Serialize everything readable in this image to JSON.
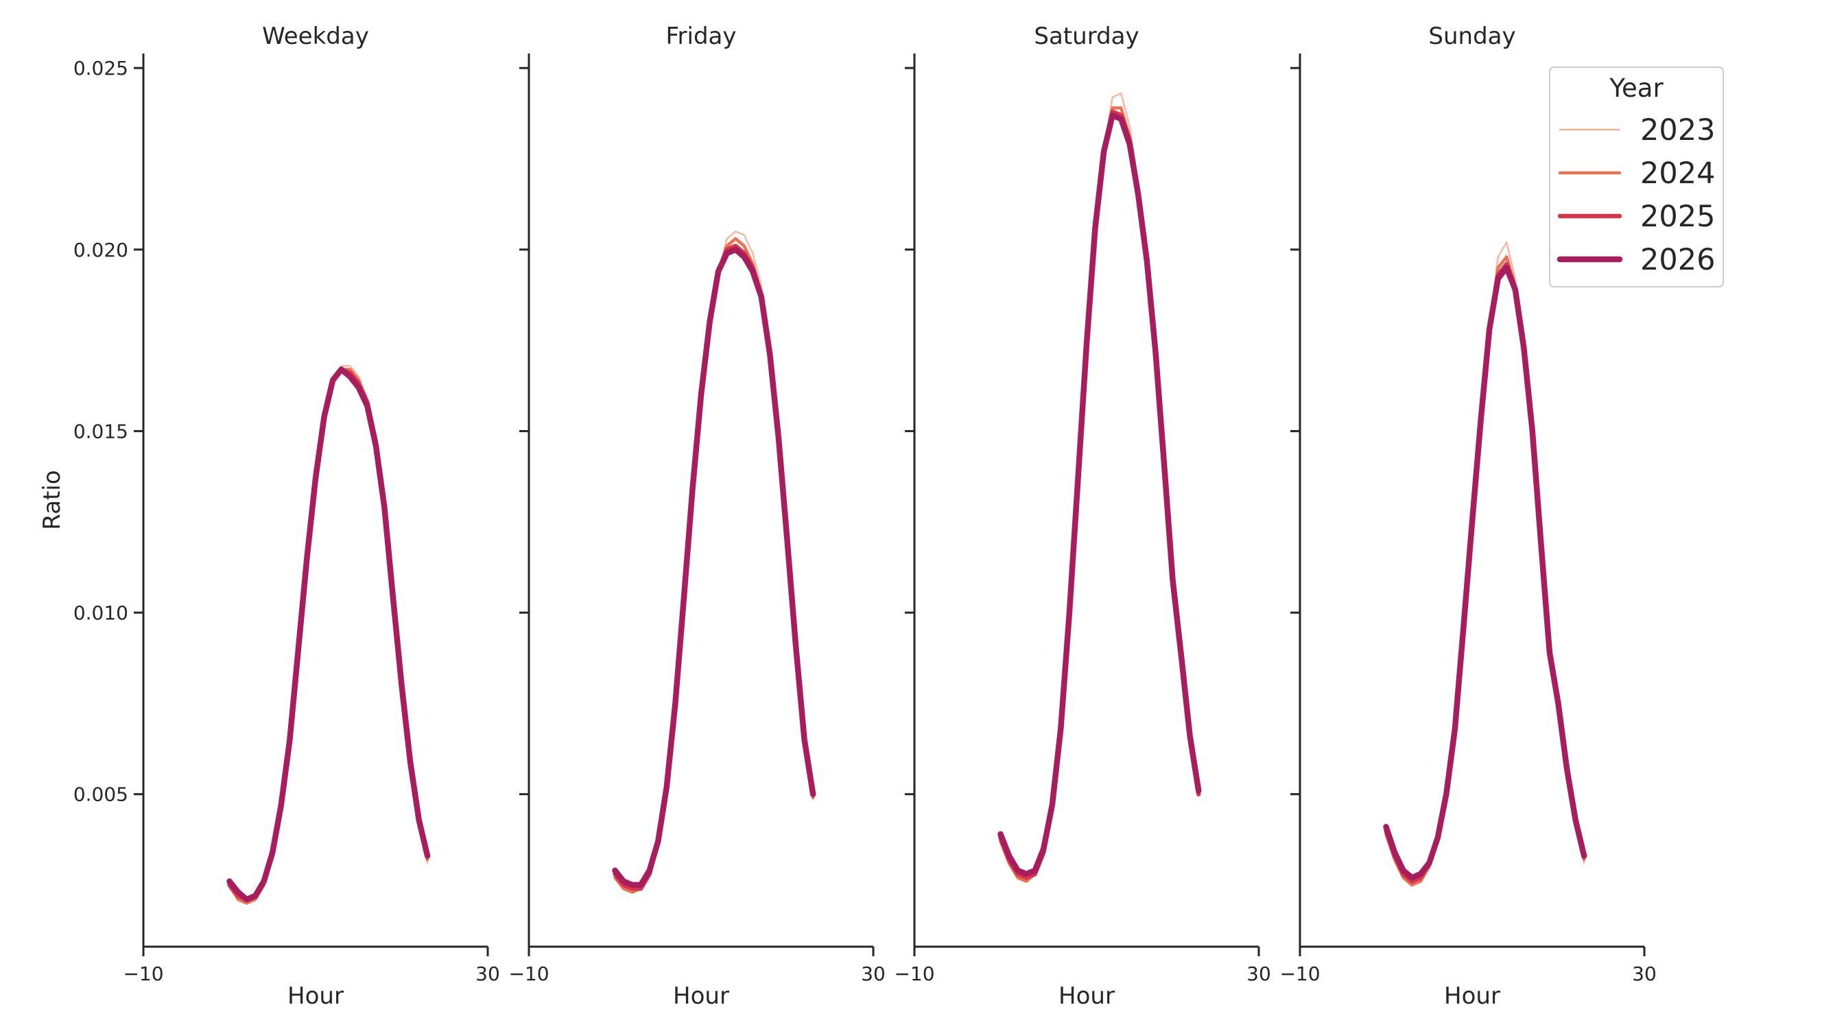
{
  "chart_data": {
    "type": "line",
    "ylabel": "Ratio",
    "legend": {
      "title": "Year",
      "position": "top-right",
      "entries": [
        {
          "name": "2023",
          "color": "#f5b09a"
        },
        {
          "name": "2024",
          "color": "#ec7152"
        },
        {
          "name": "2025",
          "color": "#d6364c"
        },
        {
          "name": "2026",
          "color": "#a71e5e"
        }
      ]
    },
    "y_ticks": [
      "0.005",
      "0.010",
      "0.015",
      "0.020",
      "0.025"
    ],
    "y_tick_values": [
      0.005,
      0.01,
      0.015,
      0.02,
      0.025
    ],
    "ylim": [
      0.0008,
      0.0254
    ],
    "xlim": [
      -10,
      30
    ],
    "x_ticks": [
      "−10",
      "30"
    ],
    "x_tick_values": [
      -10,
      30
    ],
    "grid": false,
    "panels": [
      {
        "title": "Weekday",
        "xlabel": "Hour",
        "x": [
          0,
          1,
          2,
          3,
          4,
          5,
          6,
          7,
          8,
          9,
          10,
          11,
          12,
          13,
          14,
          15,
          16,
          17,
          18,
          19,
          20,
          21,
          22,
          23
        ],
        "series": [
          {
            "name": "2023",
            "values": [
              0.0024,
              0.0021,
              0.002,
              0.0021,
              0.0025,
              0.0034,
              0.0047,
              0.0065,
              0.009,
              0.0115,
              0.0137,
              0.0154,
              0.0164,
              0.0168,
              0.0168,
              0.0165,
              0.0159,
              0.0147,
              0.0129,
              0.0104,
              0.008,
              0.0058,
              0.0042,
              0.0031
            ]
          },
          {
            "name": "2024",
            "values": [
              0.0025,
              0.0021,
              0.002,
              0.0021,
              0.0025,
              0.0034,
              0.0047,
              0.0065,
              0.009,
              0.0115,
              0.0137,
              0.0154,
              0.0164,
              0.0167,
              0.0167,
              0.0164,
              0.0158,
              0.0147,
              0.0129,
              0.0104,
              0.008,
              0.0059,
              0.0043,
              0.0032
            ]
          },
          {
            "name": "2025",
            "values": [
              0.0025,
              0.0022,
              0.0021,
              0.0022,
              0.0026,
              0.0034,
              0.0047,
              0.0065,
              0.009,
              0.0115,
              0.0137,
              0.0154,
              0.0164,
              0.0167,
              0.0166,
              0.0163,
              0.0158,
              0.0147,
              0.0129,
              0.0104,
              0.008,
              0.0059,
              0.0043,
              0.0033
            ]
          },
          {
            "name": "2026",
            "values": [
              0.0026,
              0.0023,
              0.0021,
              0.0022,
              0.0026,
              0.0034,
              0.0047,
              0.0065,
              0.009,
              0.0115,
              0.0137,
              0.0154,
              0.0164,
              0.0167,
              0.0165,
              0.0162,
              0.0157,
              0.0146,
              0.0129,
              0.0104,
              0.008,
              0.0059,
              0.0043,
              0.0033
            ]
          }
        ]
      },
      {
        "title": "Friday",
        "xlabel": "Hour",
        "x": [
          0,
          1,
          2,
          3,
          4,
          5,
          6,
          7,
          8,
          9,
          10,
          11,
          12,
          13,
          14,
          15,
          16,
          17,
          18,
          19,
          20,
          21,
          22,
          23
        ],
        "series": [
          {
            "name": "2023",
            "values": [
              0.0027,
              0.0024,
              0.0023,
              0.0024,
              0.0028,
              0.0037,
              0.0052,
              0.0075,
              0.0104,
              0.0134,
              0.016,
              0.018,
              0.0194,
              0.0203,
              0.0205,
              0.0204,
              0.0199,
              0.019,
              0.0171,
              0.0148,
              0.012,
              0.0091,
              0.0065,
              0.0049
            ]
          },
          {
            "name": "2024",
            "values": [
              0.0027,
              0.0024,
              0.0023,
              0.0024,
              0.0028,
              0.0037,
              0.0052,
              0.0075,
              0.0104,
              0.0134,
              0.016,
              0.018,
              0.0194,
              0.0201,
              0.0203,
              0.0201,
              0.0196,
              0.0188,
              0.0171,
              0.0148,
              0.012,
              0.0091,
              0.0065,
              0.0049
            ]
          },
          {
            "name": "2025",
            "values": [
              0.0028,
              0.0025,
              0.0024,
              0.0024,
              0.0028,
              0.0037,
              0.0052,
              0.0075,
              0.0104,
              0.0134,
              0.016,
              0.018,
              0.0194,
              0.02,
              0.0201,
              0.0199,
              0.0195,
              0.0187,
              0.0171,
              0.0148,
              0.012,
              0.0091,
              0.0065,
              0.005
            ]
          },
          {
            "name": "2026",
            "values": [
              0.0029,
              0.0026,
              0.0025,
              0.0025,
              0.0029,
              0.0037,
              0.0052,
              0.0075,
              0.0104,
              0.0134,
              0.016,
              0.018,
              0.0194,
              0.0199,
              0.02,
              0.0198,
              0.0194,
              0.0187,
              0.0171,
              0.0148,
              0.012,
              0.0091,
              0.0065,
              0.005
            ]
          }
        ]
      },
      {
        "title": "Saturday",
        "xlabel": "Hour",
        "x": [
          0,
          1,
          2,
          3,
          4,
          5,
          6,
          7,
          8,
          9,
          10,
          11,
          12,
          13,
          14,
          15,
          16,
          17,
          18,
          19,
          20,
          21,
          22,
          23
        ],
        "series": [
          {
            "name": "2023",
            "values": [
              0.0037,
              0.0031,
              0.0027,
              0.0026,
              0.0028,
              0.0034,
              0.0047,
              0.0068,
              0.01,
              0.0137,
              0.0174,
              0.0206,
              0.0227,
              0.0242,
              0.0243,
              0.0234,
              0.0218,
              0.0198,
              0.0172,
              0.0141,
              0.0109,
              0.0088,
              0.0066,
              0.005
            ]
          },
          {
            "name": "2024",
            "values": [
              0.0037,
              0.0031,
              0.0027,
              0.0026,
              0.0028,
              0.0034,
              0.0047,
              0.0068,
              0.01,
              0.0137,
              0.0174,
              0.0206,
              0.0227,
              0.0239,
              0.0239,
              0.0231,
              0.0216,
              0.0197,
              0.0172,
              0.0141,
              0.0109,
              0.0088,
              0.0066,
              0.005
            ]
          },
          {
            "name": "2025",
            "values": [
              0.0038,
              0.0032,
              0.0028,
              0.0027,
              0.0028,
              0.0034,
              0.0047,
              0.0068,
              0.01,
              0.0137,
              0.0174,
              0.0206,
              0.0227,
              0.0238,
              0.0237,
              0.023,
              0.0216,
              0.0197,
              0.0172,
              0.0141,
              0.0109,
              0.0088,
              0.0066,
              0.005
            ]
          },
          {
            "name": "2026",
            "values": [
              0.0039,
              0.0033,
              0.0029,
              0.0028,
              0.0029,
              0.0035,
              0.0047,
              0.0068,
              0.01,
              0.0137,
              0.0174,
              0.0206,
              0.0227,
              0.0237,
              0.0236,
              0.0229,
              0.0215,
              0.0197,
              0.0172,
              0.0141,
              0.0109,
              0.0088,
              0.0066,
              0.0051
            ]
          }
        ]
      },
      {
        "title": "Sunday",
        "xlabel": "Hour",
        "x": [
          0,
          1,
          2,
          3,
          4,
          5,
          6,
          7,
          8,
          9,
          10,
          11,
          12,
          13,
          14,
          15,
          16,
          17,
          18,
          19,
          20,
          21,
          22,
          23
        ],
        "series": [
          {
            "name": "2023",
            "values": [
              0.0039,
              0.0032,
              0.0027,
              0.0025,
              0.0026,
              0.003,
              0.0038,
              0.005,
              0.0068,
              0.0096,
              0.0125,
              0.0153,
              0.0178,
              0.0198,
              0.0202,
              0.0192,
              0.0174,
              0.015,
              0.0119,
              0.0089,
              0.0075,
              0.0057,
              0.0042,
              0.0031
            ]
          },
          {
            "name": "2024",
            "values": [
              0.0039,
              0.0032,
              0.0027,
              0.0025,
              0.0026,
              0.003,
              0.0038,
              0.005,
              0.0068,
              0.0096,
              0.0125,
              0.0153,
              0.0178,
              0.0195,
              0.0198,
              0.019,
              0.0173,
              0.015,
              0.0119,
              0.0089,
              0.0075,
              0.0057,
              0.0042,
              0.0032
            ]
          },
          {
            "name": "2025",
            "values": [
              0.004,
              0.0033,
              0.0028,
              0.0026,
              0.0027,
              0.0031,
              0.0038,
              0.005,
              0.0068,
              0.0096,
              0.0125,
              0.0153,
              0.0178,
              0.0193,
              0.0196,
              0.0189,
              0.0173,
              0.015,
              0.0119,
              0.0089,
              0.0075,
              0.0057,
              0.0043,
              0.0033
            ]
          },
          {
            "name": "2026",
            "values": [
              0.0041,
              0.0034,
              0.0029,
              0.0027,
              0.0028,
              0.0031,
              0.0038,
              0.005,
              0.0068,
              0.0096,
              0.0125,
              0.0153,
              0.0178,
              0.0192,
              0.0195,
              0.0189,
              0.0173,
              0.015,
              0.0119,
              0.0089,
              0.0075,
              0.0057,
              0.0043,
              0.0033
            ]
          }
        ]
      }
    ]
  }
}
